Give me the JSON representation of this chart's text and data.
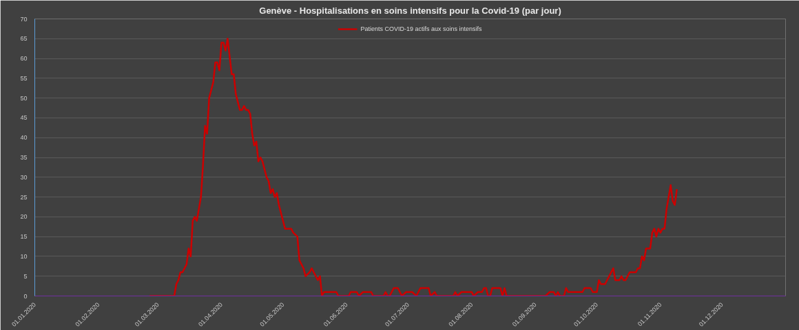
{
  "chart_data": {
    "type": "line",
    "title": "Genève - Hospitalisations en soins intensifs pour la Covid-19 (par jour)",
    "legend": "top",
    "grid": "y",
    "marker": "none",
    "line_style": "solid",
    "xlim": [
      "2020-01-01",
      "2021-01-01"
    ],
    "xticks": [
      {
        "value": "2020-01-01",
        "label": "01.01.2020"
      },
      {
        "value": "2020-02-01",
        "label": "01.02.2020"
      },
      {
        "value": "2020-03-01",
        "label": "01.03.2020"
      },
      {
        "value": "2020-04-01",
        "label": "01.04.2020"
      },
      {
        "value": "2020-05-01",
        "label": "01.05.2020"
      },
      {
        "value": "2020-06-01",
        "label": "01.06.2020"
      },
      {
        "value": "2020-07-01",
        "label": "01.07.2020"
      },
      {
        "value": "2020-08-01",
        "label": "01.08.2020"
      },
      {
        "value": "2020-09-01",
        "label": "01.09.2020"
      },
      {
        "value": "2020-10-01",
        "label": "01.10.2020"
      },
      {
        "value": "2020-11-01",
        "label": "01.11.2020"
      },
      {
        "value": "2020-12-01",
        "label": "01.12.2020"
      }
    ],
    "ylim": [
      0,
      70
    ],
    "yticks": [
      0,
      5,
      10,
      15,
      20,
      25,
      30,
      35,
      40,
      45,
      50,
      55,
      60,
      65,
      70
    ],
    "series": [
      {
        "name": "Patients COVID-19 actifs aux soins intensifs",
        "color": "#cc0000",
        "x": [
          "2020-02-26",
          "2020-03-09",
          "2020-03-10",
          "2020-03-11",
          "2020-03-12",
          "2020-03-13",
          "2020-03-15",
          "2020-03-16",
          "2020-03-17",
          "2020-03-18",
          "2020-03-19",
          "2020-03-20",
          "2020-03-22",
          "2020-03-23",
          "2020-03-24",
          "2020-03-25",
          "2020-03-26",
          "2020-03-28",
          "2020-03-29",
          "2020-03-30",
          "2020-03-31",
          "2020-04-01",
          "2020-04-02",
          "2020-04-03",
          "2020-04-04",
          "2020-04-06",
          "2020-04-07",
          "2020-04-08",
          "2020-04-10",
          "2020-04-11",
          "2020-04-12",
          "2020-04-13",
          "2020-04-14",
          "2020-04-15",
          "2020-04-16",
          "2020-04-17",
          "2020-04-18",
          "2020-04-19",
          "2020-04-20",
          "2020-04-21",
          "2020-04-22",
          "2020-04-23",
          "2020-04-24",
          "2020-04-25",
          "2020-04-26",
          "2020-04-27",
          "2020-04-28",
          "2020-04-29",
          "2020-05-01",
          "2020-05-02",
          "2020-05-05",
          "2020-05-06",
          "2020-05-08",
          "2020-05-09",
          "2020-05-11",
          "2020-05-12",
          "2020-05-14",
          "2020-05-15",
          "2020-05-17",
          "2020-05-18",
          "2020-05-19",
          "2020-05-20",
          "2020-05-21",
          "2020-05-27",
          "2020-05-28",
          "2020-06-02",
          "2020-06-03",
          "2020-06-06",
          "2020-06-07",
          "2020-06-09",
          "2020-06-13",
          "2020-06-14",
          "2020-06-19",
          "2020-06-20",
          "2020-06-21",
          "2020-06-22",
          "2020-06-24",
          "2020-06-26",
          "2020-06-28",
          "2020-06-30",
          "2020-07-03",
          "2020-07-05",
          "2020-07-07",
          "2020-07-11",
          "2020-07-12",
          "2020-07-14",
          "2020-07-15",
          "2020-07-23",
          "2020-07-24",
          "2020-07-25",
          "2020-07-27",
          "2020-08-01",
          "2020-08-02",
          "2020-08-04",
          "2020-08-06",
          "2020-08-07",
          "2020-08-08",
          "2020-08-09",
          "2020-08-10",
          "2020-08-11",
          "2020-08-15",
          "2020-08-16",
          "2020-08-17",
          "2020-08-18",
          "2020-09-06",
          "2020-09-08",
          "2020-09-10",
          "2020-09-11",
          "2020-09-12",
          "2020-09-13",
          "2020-09-15",
          "2020-09-16",
          "2020-09-17",
          "2020-09-24",
          "2020-09-25",
          "2020-09-28",
          "2020-09-29",
          "2020-10-01",
          "2020-10-02",
          "2020-10-03",
          "2020-10-05",
          "2020-10-09",
          "2020-10-10",
          "2020-10-12",
          "2020-10-13",
          "2020-10-14",
          "2020-10-15",
          "2020-10-17",
          "2020-10-20",
          "2020-10-21",
          "2020-10-22",
          "2020-10-23",
          "2020-10-24",
          "2020-10-25",
          "2020-10-27",
          "2020-10-28",
          "2020-10-29",
          "2020-10-30",
          "2020-10-31",
          "2020-11-01",
          "2020-11-02",
          "2020-11-03",
          "2020-11-04",
          "2020-11-06",
          "2020-11-07",
          "2020-11-08",
          "2020-11-09"
        ],
        "values": [
          0,
          0,
          3,
          4,
          6,
          6,
          8,
          12,
          10,
          19,
          20,
          19,
          25,
          33,
          43,
          41,
          50,
          54,
          59,
          59,
          57,
          64,
          64,
          62,
          65,
          56,
          56,
          51,
          47,
          47,
          48,
          47,
          47,
          46,
          41,
          38,
          39,
          34,
          35,
          34,
          32,
          30,
          29,
          26,
          27,
          25,
          26,
          23,
          19,
          17,
          17,
          16,
          15,
          9,
          7,
          5,
          6,
          7,
          5,
          4,
          5,
          0,
          1,
          1,
          0,
          0,
          1,
          1,
          0,
          1,
          1,
          0,
          0,
          1,
          0,
          0,
          2,
          2,
          0,
          1,
          1,
          0,
          2,
          2,
          0,
          1,
          0,
          0,
          1,
          0,
          1,
          1,
          0,
          1,
          1,
          2,
          2,
          0,
          0,
          2,
          2,
          0,
          2,
          0,
          0,
          1,
          1,
          0,
          1,
          0,
          0,
          2,
          1,
          1,
          2,
          2,
          1,
          1,
          4,
          3,
          3,
          7,
          4,
          4,
          5,
          4,
          4,
          6,
          6,
          7,
          7,
          10,
          9,
          12,
          12,
          16,
          17,
          15,
          17,
          16,
          17,
          17,
          22,
          28,
          24,
          23,
          27
        ]
      }
    ]
  }
}
